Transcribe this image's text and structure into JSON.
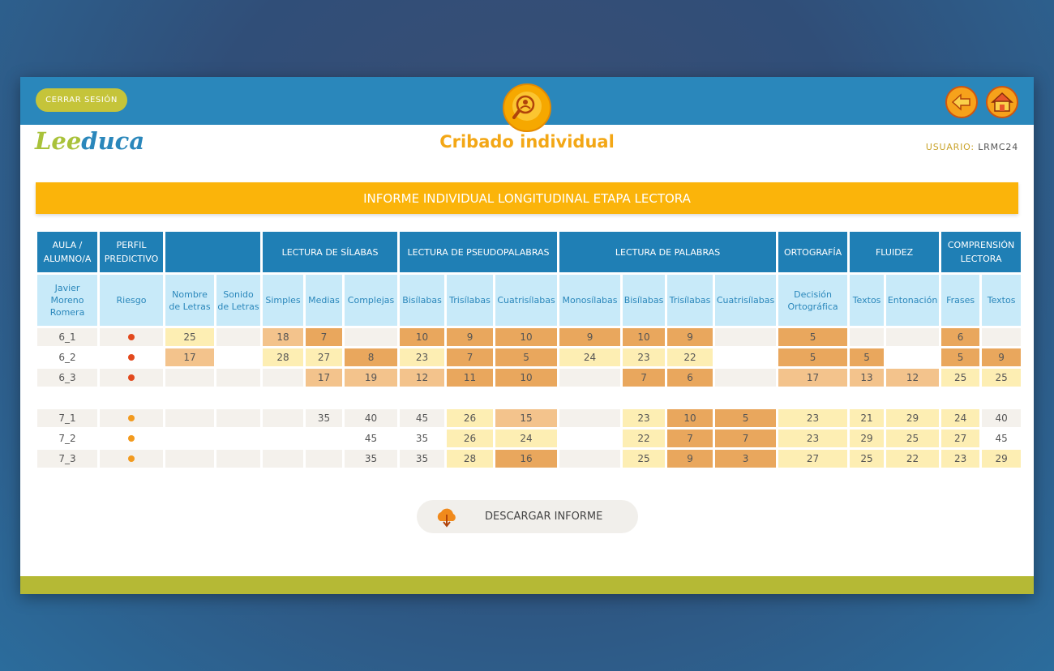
{
  "header": {
    "logout": "CERRAR SESIÓN",
    "logo": [
      "Lee",
      "duca"
    ],
    "title": "Cribado individual",
    "user_label": "USUARIO:",
    "user": "LRMC24"
  },
  "banner": "INFORME INDIVIDUAL LONGITUDINAL ETAPA LECTORA",
  "table": {
    "groups": [
      {
        "label": "AULA / ALUMNO/A",
        "columns": [
          "Javier Moreno Romera"
        ]
      },
      {
        "label": "PERFIL PREDICTIVO",
        "columns": [
          "Riesgo"
        ]
      },
      {
        "columns": [
          "Nombre de Letras",
          "Sonido de Letras"
        ]
      },
      {
        "label": "LECTURA DE SÍLABAS",
        "columns": [
          "Simples",
          "Medias",
          "Complejas"
        ]
      },
      {
        "label": "LECTURA DE PSEUDOPALABRAS",
        "columns": [
          "Bisílabas",
          "Trisílabas",
          "Cuatrisílabas"
        ]
      },
      {
        "label": "LECTURA DE PALABRAS",
        "columns": [
          "Monosílabas",
          "Bisílabas",
          "Trisílabas",
          "Cuatrisílabas"
        ]
      },
      {
        "label": "ORTOGRAFÍA",
        "columns": [
          "Decisión Ortográfica"
        ]
      },
      {
        "label": "FLUIDEZ",
        "columns": [
          "Textos",
          "Entonación"
        ]
      },
      {
        "label": "COMPRENSIÓN LECTORA",
        "columns": [
          "Frases",
          "Textos"
        ]
      }
    ],
    "blocks": [
      [
        {
          "aula": "6_1",
          "perfil_color": "#e2491d",
          "values": [
            25,
            null,
            18,
            7,
            null,
            10,
            9,
            10,
            9,
            10,
            9,
            null,
            5,
            null,
            null,
            6,
            null
          ]
        },
        {
          "aula": "6_2",
          "perfil_color": "#e2491d",
          "values": [
            17,
            null,
            28,
            27,
            8,
            23,
            7,
            5,
            24,
            23,
            22,
            null,
            5,
            5,
            null,
            5,
            9
          ]
        },
        {
          "aula": "6_3",
          "perfil_color": "#e2491d",
          "values": [
            null,
            null,
            null,
            17,
            19,
            12,
            11,
            10,
            null,
            7,
            6,
            null,
            17,
            13,
            12,
            25,
            25
          ]
        }
      ],
      [
        {
          "aula": "7_1",
          "perfil_color": "#f29a1e",
          "values": [
            null,
            null,
            null,
            35,
            40,
            45,
            26,
            15,
            null,
            23,
            10,
            5,
            23,
            21,
            29,
            24,
            40
          ]
        },
        {
          "aula": "7_2",
          "perfil_color": "#f29a1e",
          "values": [
            null,
            null,
            null,
            null,
            45,
            35,
            26,
            24,
            null,
            22,
            7,
            7,
            23,
            29,
            25,
            27,
            45
          ]
        },
        {
          "aula": "7_3",
          "perfil_color": "#f29a1e",
          "values": [
            null,
            null,
            null,
            null,
            35,
            35,
            28,
            16,
            null,
            25,
            9,
            3,
            27,
            25,
            22,
            23,
            29
          ]
        }
      ]
    ]
  },
  "download": "DESCARGAR INFORME"
}
